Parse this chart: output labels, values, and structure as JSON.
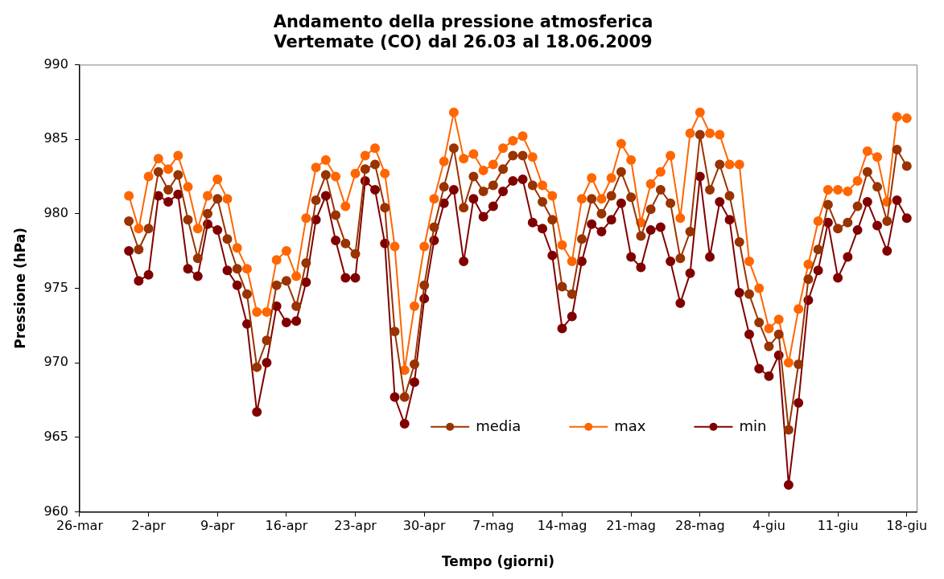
{
  "chart_data": {
    "type": "line",
    "title": "Andamento della pressione atmosferica\nVertemate (CO) dal 26.03 al 18.06.2009",
    "xlabel": "Tempo (giorni)",
    "ylabel": "Pressione (hPa)",
    "x": [
      "2009-03-31",
      "2009-04-01",
      "2009-04-02",
      "2009-04-03",
      "2009-04-04",
      "2009-04-05",
      "2009-04-06",
      "2009-04-07",
      "2009-04-08",
      "2009-04-09",
      "2009-04-10",
      "2009-04-11",
      "2009-04-12",
      "2009-04-13",
      "2009-04-14",
      "2009-04-15",
      "2009-04-16",
      "2009-04-17",
      "2009-04-18",
      "2009-04-19",
      "2009-04-20",
      "2009-04-21",
      "2009-04-22",
      "2009-04-23",
      "2009-04-24",
      "2009-04-25",
      "2009-04-26",
      "2009-04-27",
      "2009-04-28",
      "2009-04-29",
      "2009-04-30",
      "2009-05-01",
      "2009-05-02",
      "2009-05-03",
      "2009-05-04",
      "2009-05-05",
      "2009-05-06",
      "2009-05-07",
      "2009-05-08",
      "2009-05-09",
      "2009-05-10",
      "2009-05-11",
      "2009-05-12",
      "2009-05-13",
      "2009-05-14",
      "2009-05-15",
      "2009-05-16",
      "2009-05-17",
      "2009-05-18",
      "2009-05-19",
      "2009-05-20",
      "2009-05-21",
      "2009-05-22",
      "2009-05-23",
      "2009-05-24",
      "2009-05-25",
      "2009-05-26",
      "2009-05-27",
      "2009-05-28",
      "2009-05-29",
      "2009-05-30",
      "2009-05-31",
      "2009-06-01",
      "2009-06-02",
      "2009-06-03",
      "2009-06-04",
      "2009-06-05",
      "2009-06-06",
      "2009-06-07",
      "2009-06-08",
      "2009-06-09",
      "2009-06-10",
      "2009-06-11",
      "2009-06-12",
      "2009-06-13",
      "2009-06-14",
      "2009-06-15",
      "2009-06-16",
      "2009-06-17",
      "2009-06-18"
    ],
    "series": [
      {
        "name": "media",
        "color": "#993300",
        "values": [
          979.5,
          977.6,
          979.0,
          982.8,
          981.6,
          982.6,
          979.6,
          977.0,
          980.0,
          981.0,
          978.3,
          976.3,
          974.6,
          969.7,
          971.5,
          975.2,
          975.5,
          973.8,
          976.7,
          980.9,
          982.6,
          979.9,
          978.0,
          977.3,
          983.0,
          983.3,
          980.4,
          972.1,
          967.7,
          969.9,
          975.2,
          979.1,
          981.8,
          984.4,
          980.4,
          982.5,
          981.5,
          981.9,
          983.0,
          983.9,
          983.9,
          981.9,
          980.8,
          979.6,
          975.1,
          974.6,
          978.3,
          981.0,
          980.0,
          981.2,
          982.8,
          981.1,
          978.5,
          980.3,
          981.6,
          980.7,
          977.0,
          978.8,
          985.3,
          981.6,
          983.3,
          981.2,
          978.1,
          974.6,
          972.7,
          971.1,
          971.9,
          965.5,
          969.9,
          975.6,
          977.6,
          980.6,
          979.0,
          979.4,
          980.5,
          982.8,
          981.8,
          979.5,
          984.3,
          983.2
        ]
      },
      {
        "name": "max",
        "color": "#ff6600",
        "values": [
          981.2,
          979.0,
          982.5,
          983.7,
          983.0,
          983.9,
          981.8,
          979.0,
          981.2,
          982.3,
          981.0,
          977.7,
          976.3,
          973.4,
          973.4,
          976.9,
          977.5,
          975.8,
          979.7,
          983.1,
          983.6,
          982.5,
          980.5,
          982.7,
          983.9,
          984.4,
          982.7,
          977.8,
          969.5,
          973.8,
          977.8,
          981.0,
          983.5,
          986.8,
          983.7,
          984.0,
          982.9,
          983.3,
          984.4,
          984.9,
          985.2,
          983.8,
          981.9,
          981.2,
          977.9,
          976.8,
          981.0,
          982.4,
          981.0,
          982.4,
          984.7,
          983.6,
          979.4,
          982.0,
          982.8,
          983.9,
          979.7,
          985.4,
          986.8,
          985.4,
          985.3,
          983.3,
          983.3,
          976.8,
          975.0,
          972.3,
          972.9,
          970.0,
          973.6,
          976.6,
          979.5,
          981.6,
          981.6,
          981.5,
          982.2,
          984.2,
          983.8,
          980.8,
          986.5,
          986.4
        ]
      },
      {
        "name": "min",
        "color": "#800000",
        "values": [
          977.5,
          975.5,
          975.9,
          981.2,
          980.8,
          981.3,
          976.3,
          975.8,
          979.3,
          978.9,
          976.2,
          975.2,
          972.6,
          966.7,
          970.0,
          973.8,
          972.7,
          972.8,
          975.4,
          979.6,
          981.2,
          978.2,
          975.7,
          975.7,
          982.2,
          981.6,
          978.0,
          967.7,
          965.9,
          968.7,
          974.3,
          978.2,
          980.7,
          981.6,
          976.8,
          981.0,
          979.8,
          980.5,
          981.5,
          982.2,
          982.3,
          979.4,
          979.0,
          977.2,
          972.3,
          973.1,
          976.8,
          979.3,
          978.8,
          979.6,
          980.7,
          977.1,
          976.4,
          978.9,
          979.1,
          976.8,
          974.0,
          976.0,
          982.5,
          977.1,
          980.8,
          979.6,
          974.7,
          971.9,
          969.6,
          969.1,
          970.5,
          961.8,
          967.3,
          974.2,
          976.2,
          979.4,
          975.7,
          977.1,
          978.9,
          980.8,
          979.2,
          977.5,
          980.9,
          979.7
        ]
      }
    ],
    "xlim": [
      "2009-03-26",
      "2009-06-19"
    ],
    "xticks": [
      {
        "value": "2009-03-26",
        "label": "26-mar"
      },
      {
        "value": "2009-04-02",
        "label": "2-apr"
      },
      {
        "value": "2009-04-09",
        "label": "9-apr"
      },
      {
        "value": "2009-04-16",
        "label": "16-apr"
      },
      {
        "value": "2009-04-23",
        "label": "23-apr"
      },
      {
        "value": "2009-04-30",
        "label": "30-apr"
      },
      {
        "value": "2009-05-07",
        "label": "7-mag"
      },
      {
        "value": "2009-05-14",
        "label": "14-mag"
      },
      {
        "value": "2009-05-21",
        "label": "21-mag"
      },
      {
        "value": "2009-05-28",
        "label": "28-mag"
      },
      {
        "value": "2009-06-04",
        "label": "4-giu"
      },
      {
        "value": "2009-06-11",
        "label": "11-giu"
      },
      {
        "value": "2009-06-18",
        "label": "18-giu"
      }
    ],
    "ylim": [
      960,
      990
    ],
    "yticks": [
      960,
      965,
      970,
      975,
      980,
      985,
      990
    ],
    "grid": false,
    "legend": "bottom",
    "marker": "circle",
    "line_style": "solid"
  }
}
